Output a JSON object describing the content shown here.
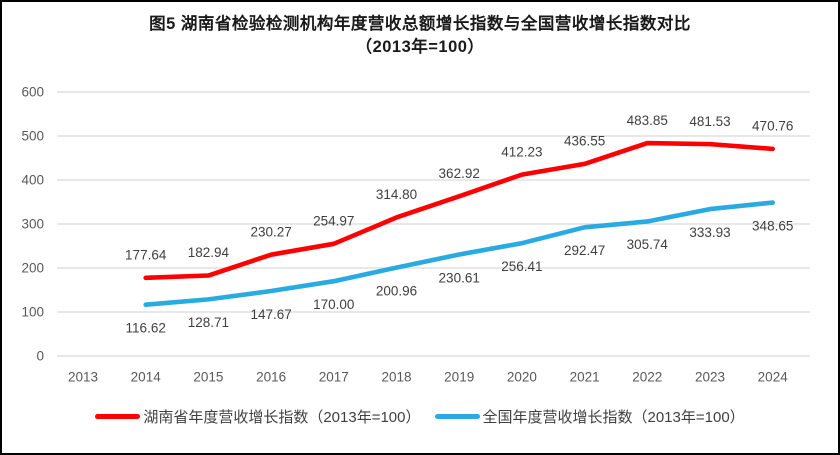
{
  "title": {
    "line1": "图5 湖南省检验检测机构年度营收总额增长指数与全国营收增长指数对比",
    "line2": "（2013年=100）"
  },
  "chart_data": {
    "type": "line",
    "title": "图5 湖南省检验检测机构年度营收总额增长指数与全国营收增长指数对比（2013年=100）",
    "x": [
      "2013",
      "2014",
      "2015",
      "2016",
      "2017",
      "2018",
      "2019",
      "2020",
      "2021",
      "2022",
      "2023",
      "2024"
    ],
    "series": [
      {
        "name": "湖南省年度营收增长指数（2013年=100）",
        "color": "#FF0000",
        "label_position": "above",
        "values": [
          null,
          177.64,
          182.94,
          230.27,
          254.97,
          314.8,
          362.92,
          412.23,
          436.55,
          483.85,
          481.53,
          470.76
        ]
      },
      {
        "name": "全国年度营收增长指数（2013年=100）",
        "color": "#29ABE2",
        "label_position": "below",
        "values": [
          null,
          116.62,
          128.71,
          147.67,
          170.0,
          200.96,
          230.61,
          256.41,
          292.47,
          305.74,
          333.93,
          348.65
        ]
      }
    ],
    "ylim": [
      0,
      600
    ],
    "ytick_step": 100,
    "grid": true,
    "legend_position": "bottom",
    "label_decimals": 2,
    "colors": {
      "grid": "#D9D9D9",
      "tick_label": "#595959",
      "data_label": "#3F3F3F",
      "background": "#FFFFFF",
      "frame_border": "#000000"
    }
  }
}
